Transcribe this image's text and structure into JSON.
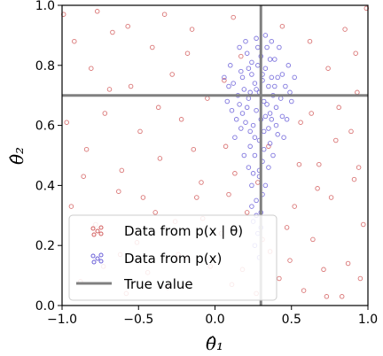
{
  "chart_data": {
    "type": "scatter",
    "xlabel": "θ̂₁",
    "ylabel": "θ̂₂",
    "xlim": [
      -1.0,
      1.0
    ],
    "ylim": [
      0.0,
      1.0
    ],
    "x_ticks": [
      "−1.0",
      "−0.5",
      "0.0",
      "0.5",
      "1.0"
    ],
    "y_ticks": [
      "0.0",
      "0.2",
      "0.4",
      "0.6",
      "0.8",
      "1.0"
    ],
    "grid": false,
    "legend_position": "lower-left",
    "true_value": {
      "x": 0.3,
      "y": 0.7
    },
    "series": [
      {
        "name": "Data from p(x | θ)",
        "color": "#d35f5f",
        "distribution": "uniform",
        "points": [
          [
            -0.92,
            0.88
          ],
          [
            -0.81,
            0.79
          ],
          [
            -0.67,
            0.91
          ],
          [
            -0.55,
            0.73
          ],
          [
            -0.41,
            0.86
          ],
          [
            -0.28,
            0.77
          ],
          [
            -0.15,
            0.92
          ],
          [
            -0.05,
            0.69
          ],
          [
            0.62,
            0.88
          ],
          [
            0.74,
            0.79
          ],
          [
            0.85,
            0.92
          ],
          [
            0.93,
            0.71
          ],
          [
            -0.97,
            0.61
          ],
          [
            -0.84,
            0.52
          ],
          [
            -0.72,
            0.64
          ],
          [
            -0.61,
            0.45
          ],
          [
            -0.49,
            0.58
          ],
          [
            -0.36,
            0.49
          ],
          [
            -0.22,
            0.62
          ],
          [
            -0.09,
            0.41
          ],
          [
            0.07,
            0.53
          ],
          [
            0.56,
            0.61
          ],
          [
            0.68,
            0.47
          ],
          [
            0.79,
            0.55
          ],
          [
            0.91,
            0.42
          ],
          [
            -0.94,
            0.33
          ],
          [
            -0.78,
            0.27
          ],
          [
            -0.63,
            0.38
          ],
          [
            -0.51,
            0.21
          ],
          [
            -0.39,
            0.31
          ],
          [
            -0.24,
            0.17
          ],
          [
            -0.12,
            0.36
          ],
          [
            0.04,
            0.24
          ],
          [
            0.18,
            0.12
          ],
          [
            0.52,
            0.33
          ],
          [
            0.64,
            0.22
          ],
          [
            0.76,
            0.36
          ],
          [
            0.87,
            0.14
          ],
          [
            0.97,
            0.27
          ],
          [
            -0.88,
            0.08
          ],
          [
            -0.73,
            0.13
          ],
          [
            -0.58,
            0.04
          ],
          [
            -0.44,
            0.11
          ],
          [
            -0.31,
            0.06
          ],
          [
            -0.18,
            0.16
          ],
          [
            0.11,
            0.07
          ],
          [
            0.42,
            0.09
          ],
          [
            0.58,
            0.05
          ],
          [
            0.71,
            0.12
          ],
          [
            0.83,
            0.03
          ],
          [
            0.95,
            0.09
          ],
          [
            0.36,
            0.18
          ],
          [
            0.27,
            0.04
          ],
          [
            0.47,
            0.26
          ],
          [
            -0.03,
            0.13
          ],
          [
            0.21,
            0.31
          ],
          [
            0.13,
            0.44
          ],
          [
            -0.99,
            0.97
          ],
          [
            0.99,
            0.99
          ],
          [
            0.44,
            0.93
          ],
          [
            -0.33,
            0.97
          ],
          [
            0.12,
            0.96
          ],
          [
            0.81,
            0.66
          ],
          [
            -0.69,
            0.72
          ],
          [
            -0.47,
            0.36
          ],
          [
            -0.14,
            0.52
          ],
          [
            0.67,
            0.39
          ],
          [
            0.89,
            0.58
          ],
          [
            -0.86,
            0.43
          ],
          [
            0.31,
            0.22
          ],
          [
            0.49,
            0.15
          ],
          [
            -0.26,
            0.28
          ],
          [
            -0.57,
            0.93
          ],
          [
            0.92,
            0.84
          ],
          [
            0.73,
            0.03
          ],
          [
            -0.77,
            0.98
          ],
          [
            0.17,
            0.83
          ],
          [
            0.06,
            0.75
          ],
          [
            -0.18,
            0.84
          ],
          [
            0.35,
            0.53
          ],
          [
            0.55,
            0.47
          ],
          [
            0.63,
            0.64
          ],
          [
            -0.08,
            0.29
          ],
          [
            0.09,
            0.37
          ],
          [
            0.28,
            0.41
          ],
          [
            -0.37,
            0.66
          ],
          [
            -0.62,
            0.17
          ],
          [
            0.94,
            0.46
          ]
        ]
      },
      {
        "name": "Data from p(x)",
        "color": "#6a5fd8",
        "distribution": "concentrated",
        "points": [
          [
            0.29,
            0.71
          ],
          [
            0.32,
            0.68
          ],
          [
            0.26,
            0.74
          ],
          [
            0.35,
            0.73
          ],
          [
            0.22,
            0.69
          ],
          [
            0.31,
            0.77
          ],
          [
            0.27,
            0.65
          ],
          [
            0.38,
            0.7
          ],
          [
            0.19,
            0.72
          ],
          [
            0.33,
            0.79
          ],
          [
            0.24,
            0.81
          ],
          [
            0.36,
            0.64
          ],
          [
            0.3,
            0.83
          ],
          [
            0.41,
            0.76
          ],
          [
            0.17,
            0.78
          ],
          [
            0.28,
            0.86
          ],
          [
            0.34,
            0.86
          ],
          [
            0.21,
            0.84
          ],
          [
            0.39,
            0.82
          ],
          [
            0.25,
            0.6
          ],
          [
            0.32,
            0.58
          ],
          [
            0.18,
            0.64
          ],
          [
            0.43,
            0.69
          ],
          [
            0.15,
            0.7
          ],
          [
            0.29,
            0.55
          ],
          [
            0.36,
            0.54
          ],
          [
            0.23,
            0.53
          ],
          [
            0.4,
            0.6
          ],
          [
            0.12,
            0.74
          ],
          [
            0.46,
            0.73
          ],
          [
            0.27,
            0.89
          ],
          [
            0.33,
            0.9
          ],
          [
            0.2,
            0.88
          ],
          [
            0.37,
            0.88
          ],
          [
            0.1,
            0.8
          ],
          [
            0.48,
            0.8
          ],
          [
            0.26,
            0.5
          ],
          [
            0.31,
            0.48
          ],
          [
            0.22,
            0.46
          ],
          [
            0.35,
            0.46
          ],
          [
            0.44,
            0.63
          ],
          [
            0.14,
            0.62
          ],
          [
            0.29,
            0.43
          ],
          [
            0.24,
            0.4
          ],
          [
            0.33,
            0.4
          ],
          [
            0.27,
            0.35
          ],
          [
            0.3,
            0.31
          ],
          [
            0.25,
            0.28
          ],
          [
            0.28,
            0.24
          ],
          [
            0.26,
            0.2
          ],
          [
            0.29,
            0.16
          ],
          [
            0.08,
            0.68
          ],
          [
            0.5,
            0.68
          ],
          [
            0.06,
            0.76
          ],
          [
            0.52,
            0.76
          ],
          [
            0.42,
            0.86
          ],
          [
            0.16,
            0.86
          ],
          [
            0.45,
            0.56
          ],
          [
            0.13,
            0.56
          ],
          [
            0.38,
            0.5
          ],
          [
            0.19,
            0.5
          ],
          [
            0.31,
            0.75
          ],
          [
            0.24,
            0.77
          ],
          [
            0.34,
            0.67
          ],
          [
            0.27,
            0.72
          ],
          [
            0.21,
            0.66
          ],
          [
            0.37,
            0.76
          ],
          [
            0.3,
            0.62
          ],
          [
            0.23,
            0.58
          ],
          [
            0.35,
            0.59
          ],
          [
            0.4,
            0.66
          ],
          [
            0.18,
            0.76
          ],
          [
            0.32,
            0.52
          ],
          [
            0.26,
            0.56
          ],
          [
            0.28,
            0.8
          ],
          [
            0.36,
            0.82
          ],
          [
            0.22,
            0.79
          ],
          [
            0.39,
            0.73
          ],
          [
            0.16,
            0.67
          ],
          [
            0.44,
            0.77
          ],
          [
            0.29,
            0.45
          ],
          [
            0.25,
            0.44
          ],
          [
            0.31,
            0.37
          ],
          [
            0.27,
            0.3
          ],
          [
            0.24,
            0.33
          ],
          [
            0.3,
            0.26
          ],
          [
            0.11,
            0.65
          ],
          [
            0.47,
            0.62
          ],
          [
            0.09,
            0.73
          ],
          [
            0.49,
            0.71
          ],
          [
            0.41,
            0.57
          ],
          [
            0.17,
            0.59
          ],
          [
            0.33,
            0.63
          ],
          [
            0.2,
            0.61
          ],
          [
            0.37,
            0.62
          ],
          [
            0.23,
            0.71
          ]
        ]
      }
    ]
  },
  "legend": {
    "items": [
      {
        "label": "Data from p(x | θ)"
      },
      {
        "label": "Data from p(x)"
      },
      {
        "label": "True value"
      }
    ]
  }
}
